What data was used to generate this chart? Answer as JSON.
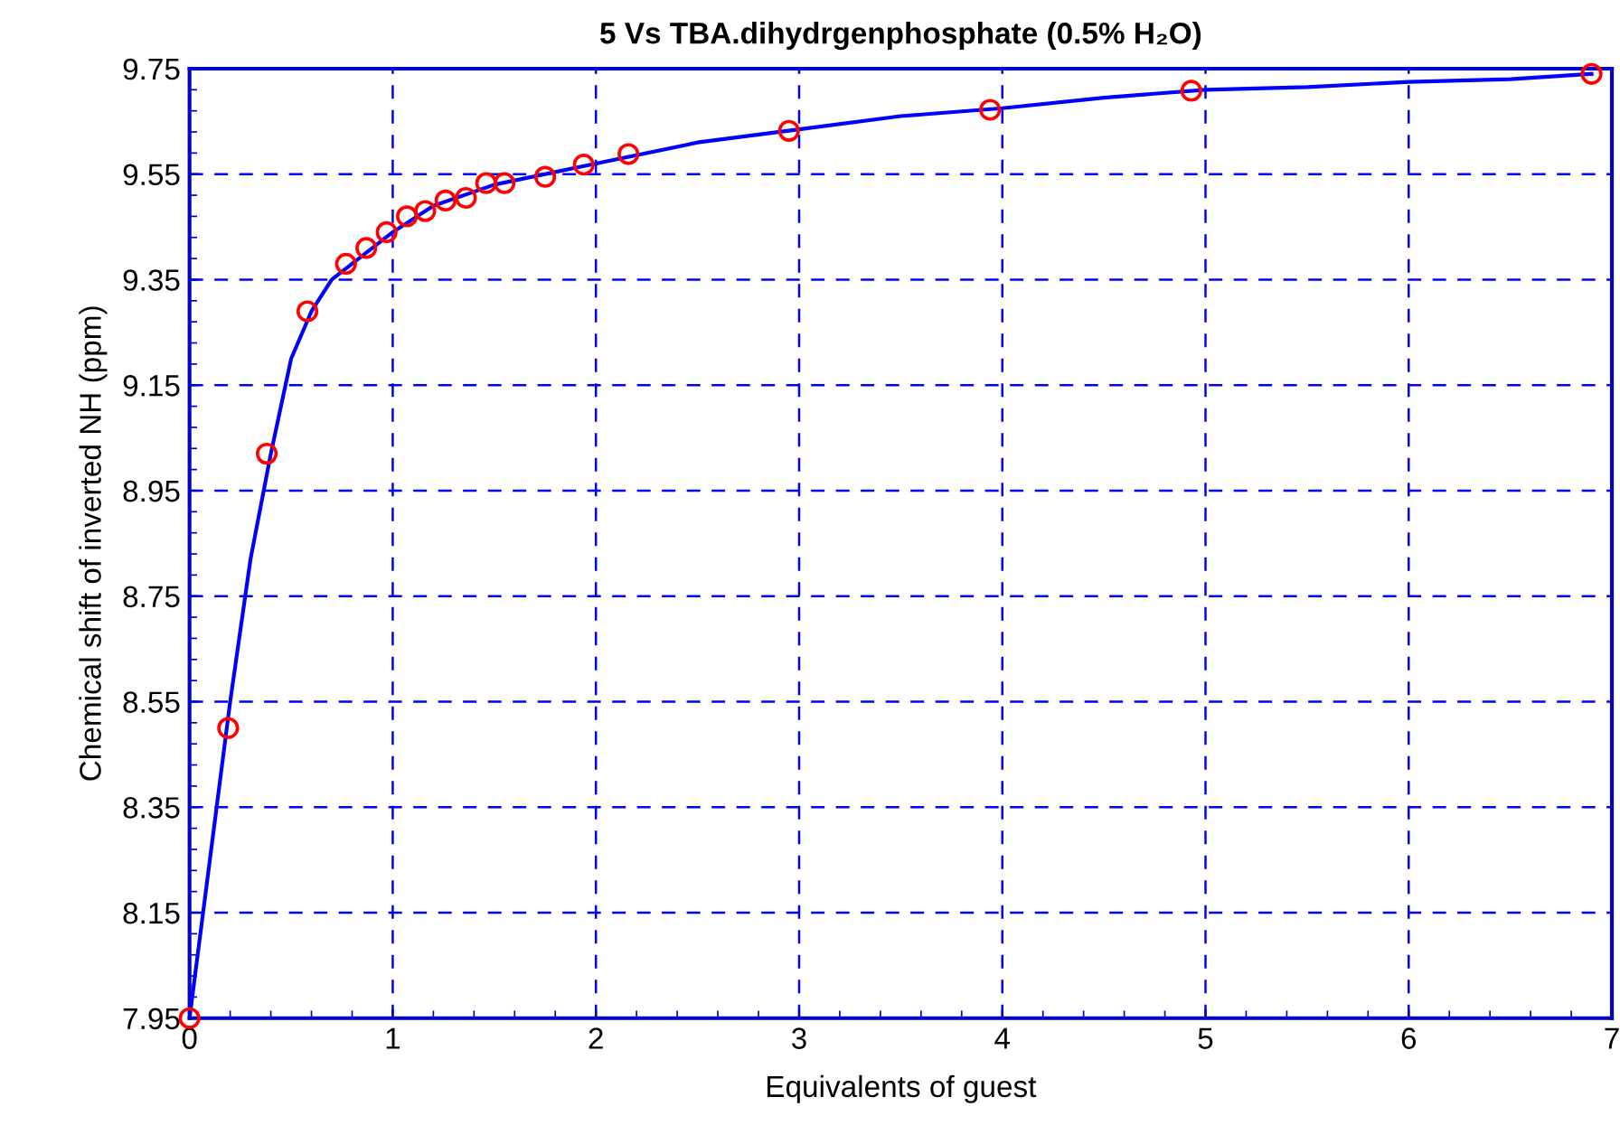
{
  "chart_data": {
    "type": "scatter",
    "title": "5 Vs TBA.dihydrgenphosphate (0.5% H₂O)",
    "xlabel": "Equivalents of guest",
    "ylabel": "Chemical shift of inverted NH (ppm)",
    "xlim": [
      0,
      7
    ],
    "ylim": [
      7.95,
      9.75
    ],
    "xticks": [
      0,
      1,
      2,
      3,
      4,
      5,
      6,
      7
    ],
    "yticks": [
      {
        "value": 7.95,
        "label": "7.95"
      },
      {
        "value": 8.15,
        "label": "8.15"
      },
      {
        "value": 8.35,
        "label": "8.35"
      },
      {
        "value": 8.55,
        "label": "8.55"
      },
      {
        "value": 8.75,
        "label": "8.75"
      },
      {
        "value": 8.95,
        "label": "8.95"
      },
      {
        "value": 9.15,
        "label": "9.15"
      },
      {
        "value": 9.35,
        "label": "9.35"
      },
      {
        "value": 9.55,
        "label": "9.55"
      },
      {
        "value": 9.75,
        "label": "9.75"
      }
    ],
    "grid": true,
    "legend": false,
    "series": [
      {
        "type": "line",
        "color": "#0000ff",
        "marker": "none",
        "line_style": "solid",
        "x": [
          0,
          0.1,
          0.2,
          0.3,
          0.4,
          0.5,
          0.6,
          0.7,
          0.8,
          1.0,
          1.2,
          1.5,
          2.0,
          2.5,
          3.0,
          3.5,
          4.0,
          4.5,
          5.0,
          5.5,
          6.0,
          6.5,
          6.9
        ],
        "values": [
          7.95,
          8.25,
          8.55,
          8.82,
          9.02,
          9.2,
          9.29,
          9.35,
          9.38,
          9.44,
          9.49,
          9.53,
          9.57,
          9.61,
          9.635,
          9.66,
          9.675,
          9.695,
          9.71,
          9.715,
          9.725,
          9.73,
          9.74
        ]
      },
      {
        "color": "#ff0000",
        "marker": "circle",
        "x": [
          0,
          0.19,
          0.38,
          0.58,
          0.77,
          0.87,
          0.97,
          1.07,
          1.16,
          1.26,
          1.36,
          1.46,
          1.55,
          1.75,
          1.94,
          2.16,
          2.95,
          3.94,
          4.93,
          6.9
        ],
        "values": [
          7.95,
          8.5,
          9.02,
          9.29,
          9.38,
          9.41,
          9.44,
          9.47,
          9.48,
          9.5,
          9.505,
          9.533,
          9.533,
          9.545,
          9.568,
          9.588,
          9.632,
          9.672,
          9.708,
          9.74
        ]
      }
    ]
  }
}
